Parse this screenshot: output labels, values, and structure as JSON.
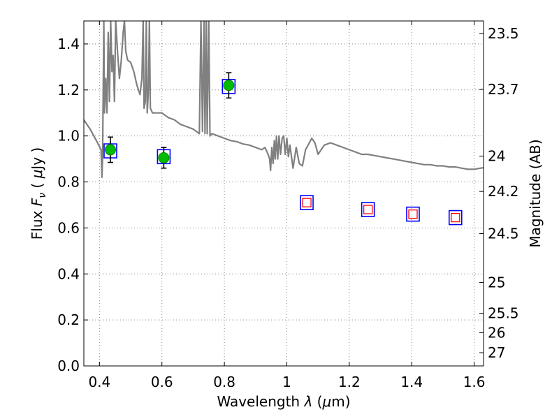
{
  "chart_data": {
    "type": "scatter",
    "title": "",
    "xlabel": "Wavelength",
    "xlabel_symbol": "λ",
    "xlabel_unit": "μm",
    "ylabel": "Flux",
    "ylabel_symbol": "F",
    "ylabel_subscript": "ν",
    "ylabel_unit_prefix": "μ",
    "ylabel_unit": "Jy",
    "y2label": "Magnitude (AB)",
    "xlim": [
      0.35,
      1.63
    ],
    "ylim": [
      0.0,
      1.5
    ],
    "grid": true,
    "legend": "none",
    "x_ticks": [
      0.4,
      0.6,
      0.8,
      1.0,
      1.2,
      1.4,
      1.6
    ],
    "x_tick_labels": [
      "0.4",
      "0.6",
      "0.8",
      "1",
      "1.2",
      "1.4",
      "1.6"
    ],
    "y_ticks": [
      0.0,
      0.2,
      0.4,
      0.6,
      0.8,
      1.0,
      1.2,
      1.4
    ],
    "y_tick_labels": [
      "0.0",
      "0.2",
      "0.4",
      "0.6",
      "0.8",
      "1.0",
      "1.2",
      "1.4"
    ],
    "magnitude_ticks": [
      {
        "label": "23.5",
        "mag": 23.5
      },
      {
        "label": "23.7",
        "mag": 23.7
      },
      {
        "label": "24",
        "mag": 24.0
      },
      {
        "label": "24.2",
        "mag": 24.2
      },
      {
        "label": "24.5",
        "mag": 24.5
      },
      {
        "label": "25",
        "mag": 25.0
      },
      {
        "label": "25.5",
        "mag": 25.5
      },
      {
        "label": "26",
        "mag": 26.0
      },
      {
        "label": "27",
        "mag": 27.0
      }
    ],
    "colors": {
      "model": "#808080",
      "observed_marker": "#00bb00",
      "observed_edge": "#008800",
      "error_bar": "#000000",
      "box_outer": "#0000ff",
      "box_inner": "#ff0000",
      "grid": "#888888"
    },
    "observed": [
      {
        "x": 0.435,
        "y": 0.94,
        "err": 0.055
      },
      {
        "x": 0.606,
        "y": 0.905,
        "err": 0.045
      },
      {
        "x": 0.814,
        "y": 1.22,
        "err": 0.055
      }
    ],
    "model_boxes": [
      {
        "x": 0.435,
        "y": 0.935
      },
      {
        "x": 0.606,
        "y": 0.91
      },
      {
        "x": 0.814,
        "y": 1.215
      }
    ],
    "predicted_boxes": [
      {
        "x": 1.064,
        "y": 0.71
      },
      {
        "x": 1.26,
        "y": 0.68
      },
      {
        "x": 1.404,
        "y": 0.66
      },
      {
        "x": 1.54,
        "y": 0.645
      }
    ],
    "model_spectrum": [
      [
        0.35,
        1.07
      ],
      [
        0.37,
        1.03
      ],
      [
        0.39,
        0.98
      ],
      [
        0.405,
        0.94
      ],
      [
        0.408,
        0.82
      ],
      [
        0.41,
        0.9
      ],
      [
        0.412,
        1.2
      ],
      [
        0.414,
        1.5
      ],
      [
        0.416,
        1.1
      ],
      [
        0.42,
        1.25
      ],
      [
        0.424,
        1.1
      ],
      [
        0.428,
        1.45
      ],
      [
        0.432,
        1.15
      ],
      [
        0.436,
        1.5
      ],
      [
        0.44,
        1.28
      ],
      [
        0.444,
        1.35
      ],
      [
        0.448,
        1.15
      ],
      [
        0.452,
        1.5
      ],
      [
        0.458,
        1.36
      ],
      [
        0.464,
        1.25
      ],
      [
        0.47,
        1.33
      ],
      [
        0.476,
        1.45
      ],
      [
        0.48,
        1.5
      ],
      [
        0.484,
        1.37
      ],
      [
        0.49,
        1.33
      ],
      [
        0.5,
        1.32
      ],
      [
        0.51,
        1.28
      ],
      [
        0.52,
        1.22
      ],
      [
        0.53,
        1.18
      ],
      [
        0.536,
        1.25
      ],
      [
        0.54,
        1.5
      ],
      [
        0.543,
        1.12
      ],
      [
        0.547,
        1.15
      ],
      [
        0.55,
        1.5
      ],
      [
        0.553,
        1.1
      ],
      [
        0.557,
        1.2
      ],
      [
        0.56,
        1.5
      ],
      [
        0.563,
        1.12
      ],
      [
        0.57,
        1.1
      ],
      [
        0.58,
        1.1
      ],
      [
        0.59,
        1.1
      ],
      [
        0.6,
        1.1
      ],
      [
        0.62,
        1.08
      ],
      [
        0.64,
        1.07
      ],
      [
        0.66,
        1.05
      ],
      [
        0.68,
        1.04
      ],
      [
        0.7,
        1.03
      ],
      [
        0.71,
        1.02
      ],
      [
        0.72,
        1.01
      ],
      [
        0.725,
        1.5
      ],
      [
        0.73,
        1.02
      ],
      [
        0.735,
        1.5
      ],
      [
        0.738,
        1.01
      ],
      [
        0.742,
        1.5
      ],
      [
        0.745,
        1.01
      ],
      [
        0.75,
        1.5
      ],
      [
        0.754,
        1.0
      ],
      [
        0.76,
        1.01
      ],
      [
        0.78,
        1.0
      ],
      [
        0.8,
        0.99
      ],
      [
        0.82,
        0.98
      ],
      [
        0.84,
        0.975
      ],
      [
        0.86,
        0.965
      ],
      [
        0.88,
        0.96
      ],
      [
        0.9,
        0.95
      ],
      [
        0.92,
        0.94
      ],
      [
        0.93,
        0.95
      ],
      [
        0.94,
        0.92
      ],
      [
        0.945,
        0.9
      ],
      [
        0.948,
        0.85
      ],
      [
        0.952,
        0.95
      ],
      [
        0.956,
        0.88
      ],
      [
        0.96,
        0.98
      ],
      [
        0.963,
        0.9
      ],
      [
        0.967,
        1.0
      ],
      [
        0.971,
        0.9
      ],
      [
        0.975,
        1.0
      ],
      [
        0.98,
        0.92
      ],
      [
        0.985,
        0.99
      ],
      [
        0.99,
        1.0
      ],
      [
        0.995,
        0.92
      ],
      [
        1.0,
        0.99
      ],
      [
        1.005,
        0.91
      ],
      [
        1.01,
        0.96
      ],
      [
        1.02,
        0.86
      ],
      [
        1.03,
        0.95
      ],
      [
        1.04,
        0.88
      ],
      [
        1.05,
        0.87
      ],
      [
        1.06,
        0.94
      ],
      [
        1.08,
        0.99
      ],
      [
        1.09,
        0.97
      ],
      [
        1.1,
        0.92
      ],
      [
        1.12,
        0.96
      ],
      [
        1.14,
        0.97
      ],
      [
        1.16,
        0.96
      ],
      [
        1.18,
        0.95
      ],
      [
        1.2,
        0.94
      ],
      [
        1.22,
        0.93
      ],
      [
        1.24,
        0.92
      ],
      [
        1.26,
        0.92
      ],
      [
        1.28,
        0.915
      ],
      [
        1.3,
        0.91
      ],
      [
        1.32,
        0.905
      ],
      [
        1.34,
        0.9
      ],
      [
        1.36,
        0.895
      ],
      [
        1.38,
        0.89
      ],
      [
        1.4,
        0.885
      ],
      [
        1.42,
        0.88
      ],
      [
        1.44,
        0.875
      ],
      [
        1.46,
        0.875
      ],
      [
        1.48,
        0.87
      ],
      [
        1.5,
        0.87
      ],
      [
        1.52,
        0.865
      ],
      [
        1.54,
        0.865
      ],
      [
        1.56,
        0.86
      ],
      [
        1.58,
        0.855
      ],
      [
        1.6,
        0.855
      ],
      [
        1.62,
        0.86
      ],
      [
        1.63,
        0.862
      ]
    ]
  }
}
